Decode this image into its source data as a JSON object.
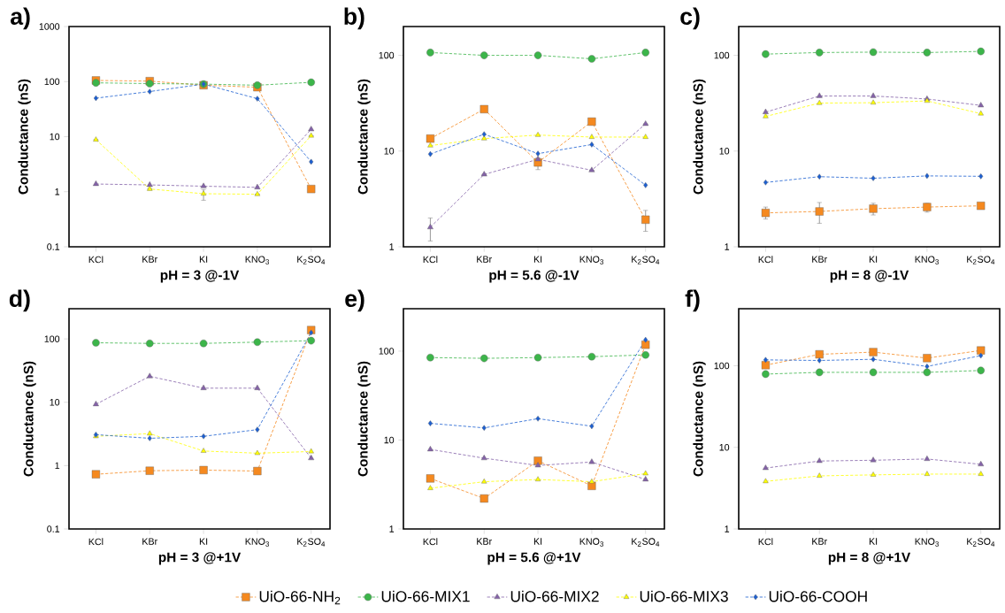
{
  "chart_data": [
    {
      "type": "line",
      "title": "a)",
      "xlabel": "pH = 3 @-1V",
      "ylabel": "Conductance (nS)",
      "log": true,
      "ylim": [
        0.1,
        1000
      ],
      "yticks": [
        0.1,
        1,
        10,
        100,
        1000
      ],
      "line_style": "dashed",
      "legend": "bottom",
      "categories": [
        "KCl",
        "KBr",
        "KI",
        "KNO$_{3}$",
        "K$_{2}$SO$_{4}$"
      ],
      "series": [
        {
          "name": "UiO-66-NH$_{2}$",
          "color": "#f5891f",
          "marker": "square",
          "values": [
            105,
            102,
            86,
            79,
            1.12
          ]
        },
        {
          "name": "UiO-66-MIX1",
          "color": "#3cb54a",
          "marker": "circle",
          "values": [
            95,
            92,
            90,
            86,
            97
          ]
        },
        {
          "name": "UiO-66-MIX2",
          "color": "#8462a8",
          "marker": "triangle",
          "values": [
            1.38,
            1.33,
            1.26,
            1.2,
            13.6
          ]
        },
        {
          "name": "UiO-66-MIX3",
          "color": "#ffff00",
          "marker": "triangle",
          "values": [
            8.8,
            1.12,
            0.92,
            0.9,
            10.4
          ],
          "errors": [
            null,
            null,
            [
              0.7,
              1.1
            ],
            null,
            null
          ]
        },
        {
          "name": "UiO-66-COOH",
          "color": "#1c5fd1",
          "marker": "diamond",
          "values": [
            50,
            66,
            90,
            49,
            3.5
          ]
        }
      ]
    },
    {
      "type": "line",
      "title": "b)",
      "xlabel": "pH = 5.6 @-1V",
      "ylabel": "Conductance (nS)",
      "log": true,
      "ylim": [
        1,
        200
      ],
      "yticks": [
        1,
        10,
        100
      ],
      "line_style": "dashed",
      "categories": [
        "KCl",
        "KBr",
        "KI",
        "KNO$_{3}$",
        "K$_{2}$SO$_{4}$"
      ],
      "series": [
        {
          "color": "#f5891f",
          "marker": "square",
          "values": [
            13.5,
            27.4,
            7.6,
            20.3,
            1.92
          ],
          "errors": [
            null,
            null,
            [
              6.4,
              8.5
            ],
            null,
            [
              1.45,
              2.4
            ]
          ]
        },
        {
          "color": "#3cb54a",
          "marker": "circle",
          "values": [
            107,
            100,
            100,
            92,
            107
          ]
        },
        {
          "color": "#8462a8",
          "marker": "triangle",
          "values": [
            1.6,
            5.7,
            8.2,
            6.3,
            19.2
          ],
          "errors": [
            [
              1.15,
              2.0
            ],
            null,
            null,
            null,
            null
          ]
        },
        {
          "color": "#ffff00",
          "marker": "triangle",
          "values": [
            11.4,
            13.5,
            14.7,
            14,
            14
          ]
        },
        {
          "color": "#1c5fd1",
          "marker": "diamond",
          "values": [
            9.3,
            15,
            9.4,
            11.7,
            4.4
          ]
        }
      ]
    },
    {
      "type": "line",
      "title": "c)",
      "xlabel": "pH = 8 @-1V",
      "ylabel": "Conductance (nS)",
      "log": true,
      "ylim": [
        1,
        200
      ],
      "yticks": [
        1,
        10,
        100
      ],
      "line_style": "dashed",
      "categories": [
        "KCl",
        "KBr",
        "KI",
        "KNO$_{3}$",
        "K$_{2}$SO$_{4}$"
      ],
      "series": [
        {
          "color": "#f5891f",
          "marker": "square",
          "values": [
            2.26,
            2.34,
            2.5,
            2.6,
            2.68
          ],
          "errors": [
            [
              1.95,
              2.6
            ],
            [
              1.76,
              2.9
            ],
            [
              2.15,
              2.85
            ],
            [
              2.3,
              2.85
            ],
            null
          ]
        },
        {
          "color": "#3cb54a",
          "marker": "circle",
          "values": [
            103,
            107,
            108,
            107,
            110
          ]
        },
        {
          "color": "#8462a8",
          "marker": "triangle",
          "values": [
            25.5,
            37.6,
            37.6,
            35,
            30
          ]
        },
        {
          "color": "#ffff00",
          "marker": "triangle",
          "values": [
            23,
            31.7,
            32,
            33.4,
            24.6
          ]
        },
        {
          "color": "#1c5fd1",
          "marker": "diamond",
          "values": [
            4.7,
            5.4,
            5.2,
            5.5,
            5.45
          ]
        }
      ]
    },
    {
      "type": "line",
      "title": "d)",
      "xlabel": "pH = 3 @+1V",
      "ylabel": "Conductance (nS)",
      "log": true,
      "ylim": [
        0.1,
        300
      ],
      "yticks": [
        0.1,
        1,
        10,
        100
      ],
      "line_style": "dashed",
      "categories": [
        "KCl",
        "KBr",
        "KI",
        "KNO$_{3}$",
        "K$_{2}$SO$_{4}$"
      ],
      "series": [
        {
          "color": "#f5891f",
          "marker": "square",
          "values": [
            0.73,
            0.83,
            0.85,
            0.82,
            138
          ]
        },
        {
          "color": "#3cb54a",
          "marker": "circle",
          "values": [
            87,
            85,
            85,
            89,
            94
          ]
        },
        {
          "color": "#8462a8",
          "marker": "triangle",
          "values": [
            9.3,
            25.7,
            16.7,
            16.7,
            1.31
          ]
        },
        {
          "color": "#ffff00",
          "marker": "triangle",
          "values": [
            2.9,
            3.2,
            1.7,
            1.57,
            1.67
          ]
        },
        {
          "color": "#1c5fd1",
          "marker": "diamond",
          "values": [
            3.08,
            2.7,
            2.9,
            3.7,
            126
          ]
        }
      ]
    },
    {
      "type": "line",
      "title": "e)",
      "xlabel": "pH = 5.6 @+1V",
      "ylabel": "Conductance (nS)",
      "log": true,
      "ylim": [
        1,
        300
      ],
      "yticks": [
        1,
        10,
        100
      ],
      "line_style": "dashed",
      "categories": [
        "KCl",
        "KBr",
        "KI",
        "KNO$_{3}$",
        "K$_{2}$SO$_{4}$"
      ],
      "series": [
        {
          "color": "#f5891f",
          "marker": "square",
          "values": [
            3.7,
            2.2,
            5.85,
            3.05,
            118
          ]
        },
        {
          "color": "#3cb54a",
          "marker": "circle",
          "values": [
            84.6,
            83,
            84.6,
            86.6,
            90.6
          ]
        },
        {
          "color": "#8462a8",
          "marker": "triangle",
          "values": [
            7.85,
            6.25,
            5.18,
            5.66,
            3.6
          ]
        },
        {
          "color": "#ffff00",
          "marker": "triangle",
          "values": [
            2.87,
            3.4,
            3.6,
            3.4,
            4.2
          ]
        },
        {
          "color": "#1c5fd1",
          "marker": "diamond",
          "values": [
            15.4,
            13.7,
            17.4,
            14.3,
            134
          ]
        }
      ]
    },
    {
      "type": "line",
      "title": "f)",
      "xlabel": "pH = 8 @+1V",
      "ylabel": "Conductance (nS)",
      "log": true,
      "ylim": [
        1,
        500
      ],
      "yticks": [
        1,
        10,
        100
      ],
      "line_style": "dashed",
      "categories": [
        "KCl",
        "KBr",
        "KI",
        "KNO$_{3}$",
        "K$_{2}$SO$_{4}$"
      ],
      "series": [
        {
          "color": "#f5891f",
          "marker": "square",
          "values": [
            101.7,
            138,
            147,
            124,
            154
          ]
        },
        {
          "color": "#3cb54a",
          "marker": "circle",
          "values": [
            79,
            83,
            83,
            83,
            87.5
          ]
        },
        {
          "color": "#8462a8",
          "marker": "triangle",
          "values": [
            5.57,
            6.8,
            6.95,
            7.2,
            6.2
          ]
        },
        {
          "color": "#ffff00",
          "marker": "triangle",
          "values": [
            3.83,
            4.47,
            4.6,
            4.7,
            4.7
          ]
        },
        {
          "color": "#1c5fd1",
          "marker": "diamond",
          "values": [
            118,
            116,
            120,
            98,
            133
          ]
        }
      ]
    }
  ]
}
